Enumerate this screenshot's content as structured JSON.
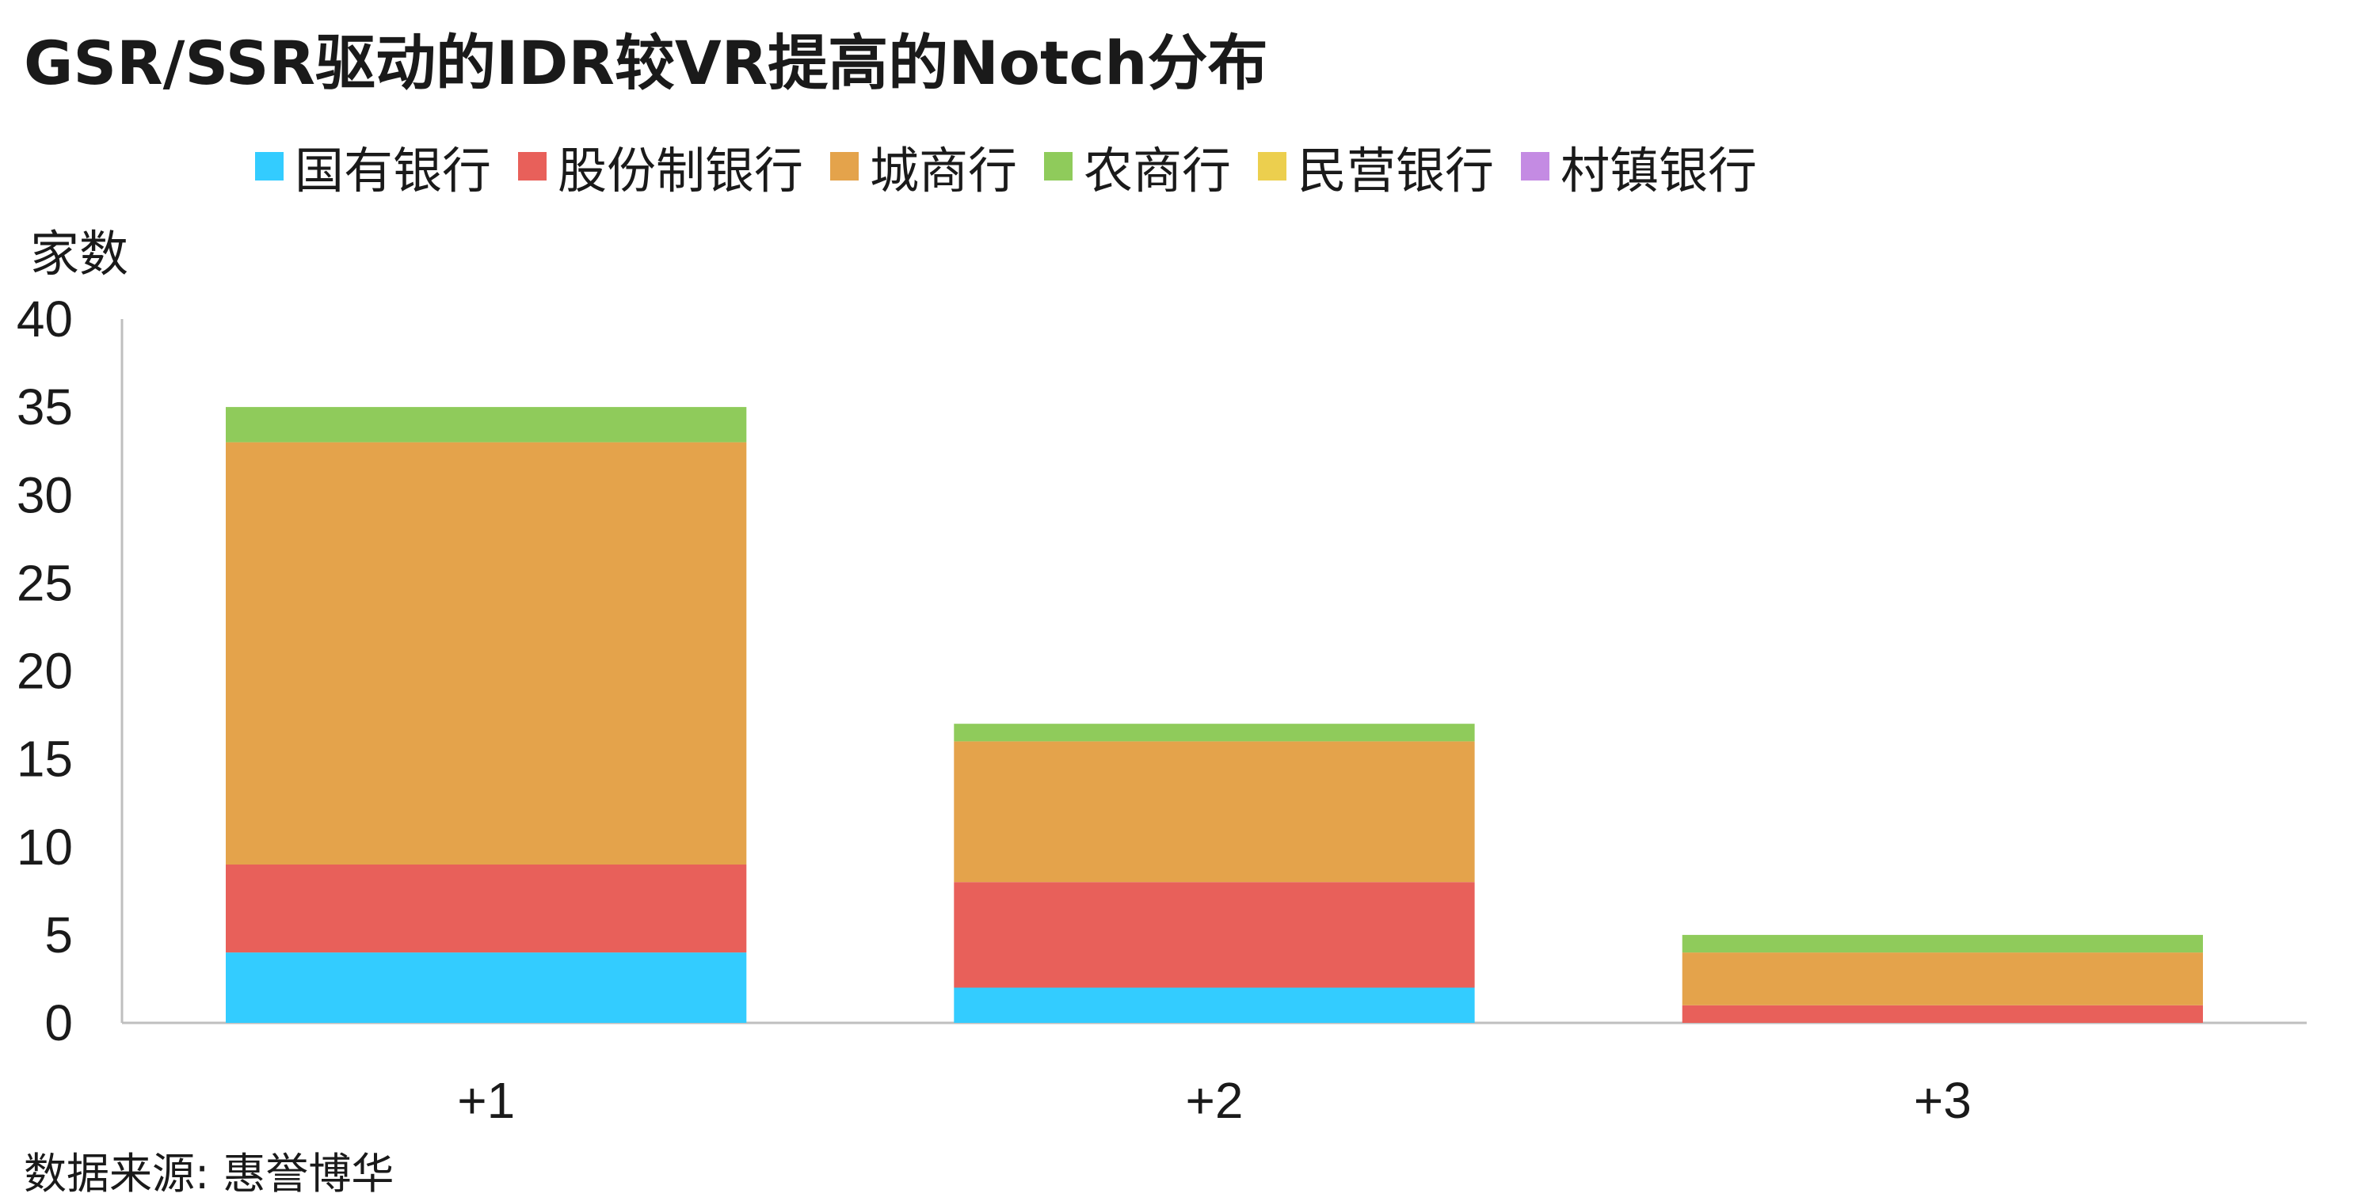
{
  "chart_data": {
    "type": "bar",
    "stacked": true,
    "title": "GSR/SSR驱动的IDR较VR提高的Notch分布",
    "ylabel": "家数",
    "xlabel": "",
    "categories": [
      "+1",
      "+2",
      "+3"
    ],
    "ylim": [
      0,
      40
    ],
    "yticks": [
      0,
      5,
      10,
      15,
      20,
      25,
      30,
      35,
      40
    ],
    "grid": false,
    "legend_position": "top-center",
    "series": [
      {
        "name": "国有银行",
        "color": "#33CCFF",
        "values": [
          4,
          2,
          0
        ]
      },
      {
        "name": "股份制银行",
        "color": "#E8605A",
        "values": [
          5,
          6,
          1
        ]
      },
      {
        "name": "城商行",
        "color": "#E4A34B",
        "values": [
          24,
          8,
          3
        ]
      },
      {
        "name": "农商行",
        "color": "#8FCB5B",
        "values": [
          2,
          1,
          1
        ]
      },
      {
        "name": "民营银行",
        "color": "#ECCF4E",
        "values": [
          0,
          0,
          0
        ]
      },
      {
        "name": "村镇银行",
        "color": "#C48BE3",
        "values": [
          0,
          0,
          0
        ]
      }
    ]
  },
  "source": "数据来源: 惠誉博华"
}
